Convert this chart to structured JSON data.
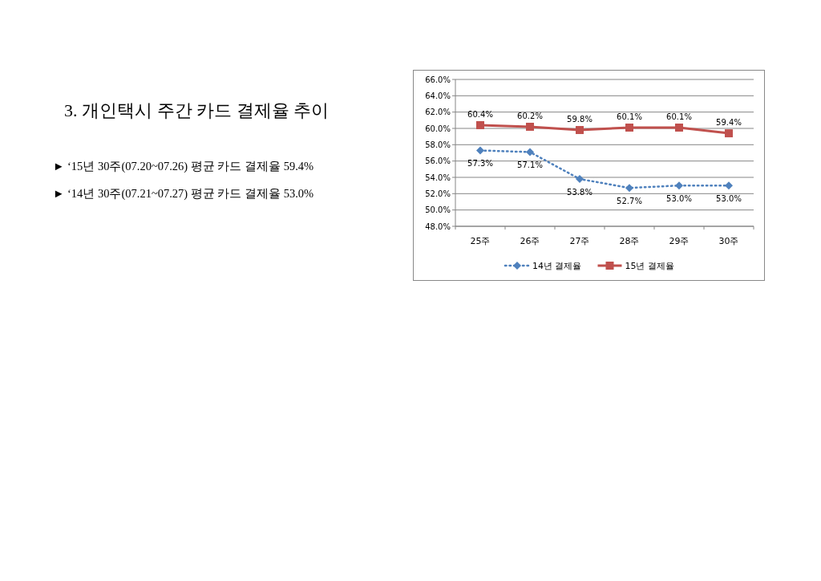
{
  "chart_data": {
    "type": "line",
    "title": "3. 개인택시 주간 카드 결제율 추이",
    "annotations": [
      "► ‘15년 30주(07.20~07.26) 평균 카드 결제율 59.4%",
      "► ‘14년 30주(07.21~07.27) 평균 카드 결제율 53.0%"
    ],
    "categories": [
      "25주",
      "26주",
      "27주",
      "28주",
      "29주",
      "30주"
    ],
    "series": [
      {
        "name": "14년 결제율",
        "color": "#4f81bd",
        "marker": "diamond",
        "line_style": "dotted",
        "values": [
          57.3,
          57.1,
          53.8,
          52.7,
          53.0,
          53.0
        ],
        "value_labels": [
          "57.3%",
          "57.1%",
          "53.8%",
          "52.7%",
          "53.0%",
          "53.0%"
        ]
      },
      {
        "name": "15년 결제율",
        "color": "#c0504d",
        "marker": "square",
        "line_style": "solid",
        "values": [
          60.4,
          60.2,
          59.8,
          60.1,
          60.1,
          59.4
        ],
        "value_labels": [
          "60.4%",
          "60.2%",
          "59.8%",
          "60.1%",
          "60.1%",
          "59.4%"
        ]
      }
    ],
    "ylim": [
      48,
      66
    ],
    "yticks": [
      {
        "value": 48,
        "label": "48.0%"
      },
      {
        "value": 50,
        "label": "50.0%"
      },
      {
        "value": 52,
        "label": "52.0%"
      },
      {
        "value": 54,
        "label": "54.0%"
      },
      {
        "value": 56,
        "label": "56.0%"
      },
      {
        "value": 58,
        "label": "58.0%"
      },
      {
        "value": 60,
        "label": "60.0%"
      },
      {
        "value": 62,
        "label": "62.0%"
      },
      {
        "value": 64,
        "label": "64.0%"
      },
      {
        "value": 66,
        "label": "66.0%"
      }
    ],
    "grid": "y",
    "legend": "bottom"
  }
}
